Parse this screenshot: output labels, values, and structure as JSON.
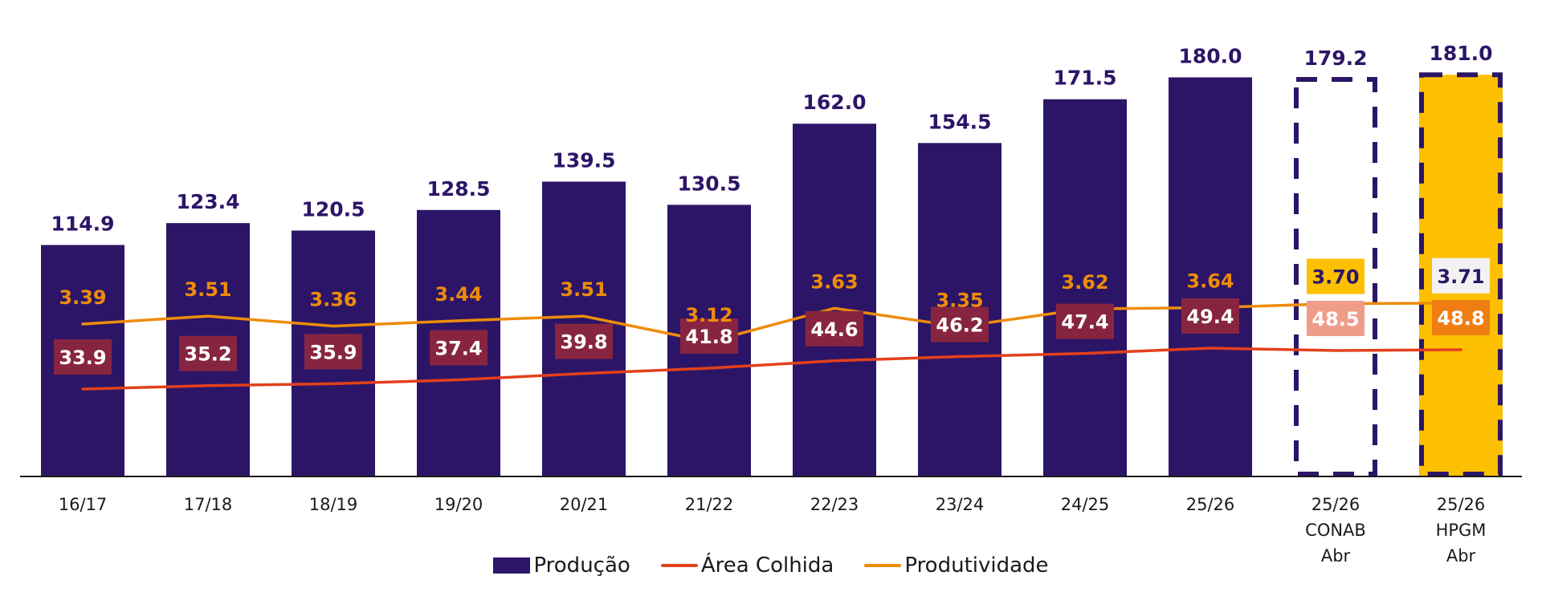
{
  "chart_data": {
    "type": "bar",
    "title": "",
    "xlabel": "",
    "ylabel": "",
    "grid": false,
    "legend_position": "bottom-center",
    "categories": [
      "16/17",
      "17/18",
      "18/19",
      "19/20",
      "20/21",
      "21/22",
      "22/23",
      "23/24",
      "24/25",
      "25/26",
      "25/26\nCONAB\nAbr",
      "25/26\nHPGM\nAbr"
    ],
    "category_lines": [
      [
        "16/17"
      ],
      [
        "17/18"
      ],
      [
        "18/19"
      ],
      [
        "19/20"
      ],
      [
        "20/21"
      ],
      [
        "21/22"
      ],
      [
        "22/23"
      ],
      [
        "23/24"
      ],
      [
        "24/25"
      ],
      [
        "25/26"
      ],
      [
        "25/26",
        "CONAB",
        "Abr"
      ],
      [
        "25/26",
        "HPGM",
        "Abr"
      ]
    ],
    "series": [
      {
        "name": "Produção",
        "type": "bar",
        "color": "#2c1567",
        "values": [
          114.9,
          123.4,
          120.5,
          128.5,
          139.5,
          130.5,
          162.0,
          154.5,
          171.5,
          180.0,
          179.2,
          181.0
        ],
        "labels": [
          "114.9",
          "123.4",
          "120.5",
          "128.5",
          "139.5",
          "130.5",
          "162.0",
          "154.5",
          "171.5",
          "180.0",
          "179.2",
          "181.0"
        ],
        "bar_styles": [
          "solid",
          "solid",
          "solid",
          "solid",
          "solid",
          "solid",
          "solid",
          "solid",
          "solid",
          "solid",
          "dashed-outline",
          "highlight"
        ],
        "ylim": [
          25,
          185
        ]
      },
      {
        "name": "Área Colhida",
        "type": "line",
        "color": "#e3401c",
        "values": [
          33.9,
          35.2,
          35.9,
          37.4,
          39.8,
          41.8,
          44.6,
          46.2,
          47.4,
          49.4,
          48.5,
          48.8
        ],
        "labels": [
          "33.9",
          "35.2",
          "35.9",
          "37.4",
          "39.8",
          "41.8",
          "44.6",
          "46.2",
          "47.4",
          "49.4",
          "48.5",
          "48.8"
        ],
        "label_bg": [
          "#872540",
          "#872540",
          "#872540",
          "#872540",
          "#872540",
          "#872540",
          "#872540",
          "#872540",
          "#872540",
          "#872540",
          "#ef9d8a",
          "#ef7d12"
        ],
        "ylim": [
          10,
          55
        ]
      },
      {
        "name": "Produtividade",
        "type": "line",
        "color": "#ee8c0a",
        "values": [
          3.39,
          3.51,
          3.36,
          3.44,
          3.51,
          3.12,
          3.63,
          3.35,
          3.62,
          3.64,
          3.7,
          3.71
        ],
        "labels": [
          "3.39",
          "3.51",
          "3.36",
          "3.44",
          "3.51",
          "3.12",
          "3.63",
          "3.35",
          "3.62",
          "3.64",
          "3.70",
          "3.71"
        ],
        "label_text_color": [
          "#ee8c0a",
          "#ee8c0a",
          "#ee8c0a",
          "#ee8c0a",
          "#ee8c0a",
          "#ee8c0a",
          "#ee8c0a",
          "#ee8c0a",
          "#ee8c0a",
          "#ee8c0a",
          "#2c1567",
          "#2c1567"
        ],
        "label_bg": [
          "none",
          "none",
          "none",
          "none",
          "none",
          "none",
          "none",
          "none",
          "none",
          "none",
          "#fdc000",
          "#f2f2f2"
        ],
        "ylim": [
          1.5,
          5.5
        ]
      }
    ]
  },
  "colors": {
    "bar": "#2c1567",
    "highlight_fill": "#fdc000",
    "axis": "#1a1a1a",
    "area_line": "#e3401c",
    "prod_line": "#ee8c0a"
  },
  "legend": [
    {
      "label": "Produção",
      "swatch": "box",
      "color": "#2c1567"
    },
    {
      "label": "Área Colhida",
      "swatch": "line",
      "color": "#e3401c"
    },
    {
      "label": "Produtividade",
      "swatch": "line",
      "color": "#ee8c0a"
    }
  ]
}
